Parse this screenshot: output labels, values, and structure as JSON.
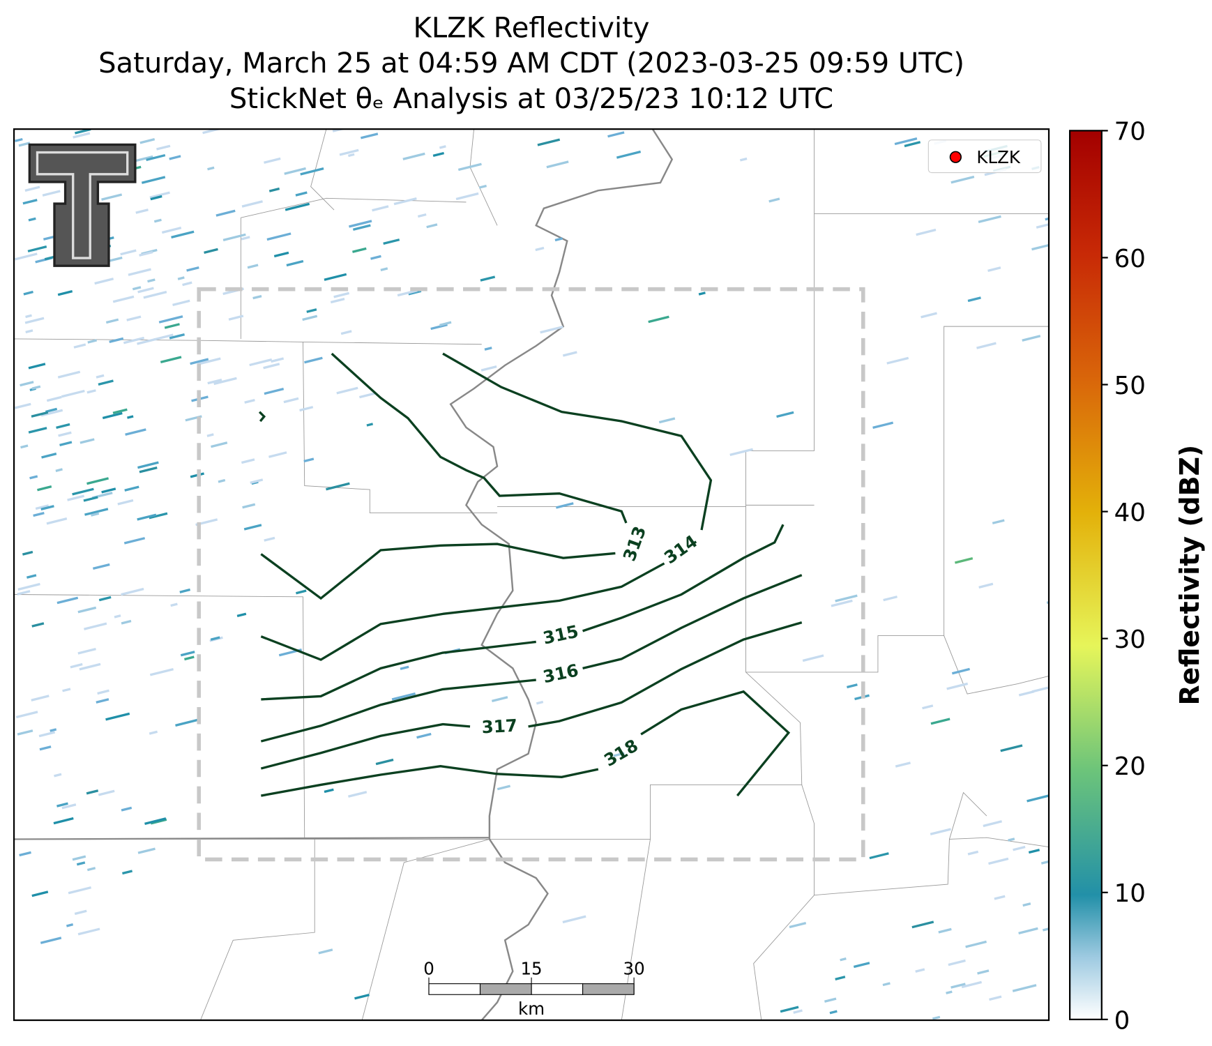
{
  "header": {
    "title": "KLZK Reflectivity",
    "subtitle": "Saturday, March 25 at 04:59 AM CDT (2023-03-25 09:59 UTC)",
    "analysis": "StickNet θₑ Analysis at 03/25/23 10:12 UTC"
  },
  "legend": {
    "entries": [
      {
        "label": "KLZK",
        "color": "#ff0000"
      }
    ]
  },
  "contours": {
    "levels": [
      313,
      314,
      315,
      316,
      317,
      318
    ],
    "color": "#0b4020"
  },
  "scale_bar": {
    "ticks": [
      0,
      15,
      30
    ],
    "unit": "km"
  },
  "colorbar": {
    "label": "Reflectivity (dBZ)",
    "lim": [
      0,
      70
    ],
    "ticks": [
      0,
      10,
      20,
      30,
      40,
      50,
      60,
      70
    ]
  }
}
